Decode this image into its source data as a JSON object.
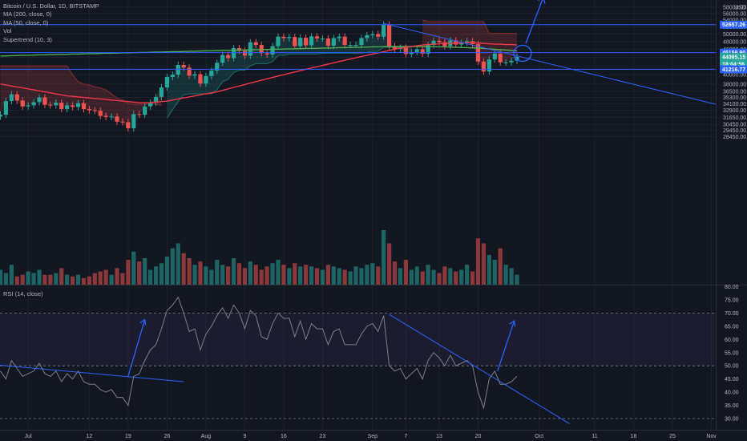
{
  "legend": {
    "title": "Bitcoin / U.S. Dollar, 1D, BITSTAMP",
    "ma200": "MA (200, close, 0)",
    "ma50": "MA (50, close, 0)",
    "vol": "Vol",
    "supertrend": "Supertrend (10, 3)",
    "rsi": "RSI (14, close)"
  },
  "price_axis": {
    "unit": "USD",
    "ticks": [
      "58000.00",
      "56000.00",
      "54000.00",
      "52000.00",
      "50000.00",
      "48000.00",
      "46000.00",
      "44000.00",
      "42000.00",
      "40000.00",
      "38000.00",
      "36500.00",
      "35300.00",
      "34100.00",
      "32900.00",
      "31650.00",
      "30450.00",
      "29450.00",
      "28450.00"
    ],
    "labels": [
      {
        "text": "52657.26",
        "color": "#2962ff"
      },
      {
        "text": "45159.90",
        "color": "#2962ff"
      },
      {
        "text": "44095.15",
        "color": "#26a69a"
      },
      {
        "text": "18:04:56",
        "color": "#26a69a"
      },
      {
        "text": "41216.77",
        "color": "#2962ff"
      }
    ]
  },
  "rsi_axis": {
    "ticks": [
      "80.00",
      "75.00",
      "70.00",
      "65.00",
      "60.00",
      "55.00",
      "50.00",
      "45.00",
      "40.00",
      "35.00",
      "30.00"
    ]
  },
  "time_axis": [
    "Jul",
    "12",
    "19",
    "26",
    "Aug",
    "9",
    "16",
    "23",
    "Sep",
    "7",
    "13",
    "20",
    "Oct",
    "11",
    "18",
    "25",
    "Nov"
  ],
  "colors": {
    "up": "#26a69a",
    "down": "#ef5350",
    "ma200": "#4caf50",
    "ma50": "#f23645",
    "drawing": "#2962ff",
    "rsi": "#7e7f86",
    "background": "#131722"
  },
  "chart_data": [
    {
      "type": "candlestick",
      "title": "Bitcoin / U.S. Dollar, 1D, BITSTAMP",
      "ylabel": "USD",
      "x_range": [
        "2021-06-26",
        "2021-11-02"
      ],
      "ylim": [
        28000,
        58500
      ],
      "log_scale": true,
      "close": [
        32100,
        34600,
        35900,
        34700,
        33600,
        33800,
        34400,
        35300,
        33900,
        33800,
        34300,
        33100,
        33800,
        33500,
        34200,
        33100,
        32900,
        32800,
        31900,
        31700,
        31800,
        30900,
        30800,
        29800,
        32200,
        32100,
        33600,
        34300,
        35400,
        37300,
        39500,
        40000,
        42200,
        41600,
        39800,
        40100,
        38100,
        39700,
        40900,
        42700,
        44600,
        43800,
        46300,
        45600,
        44400,
        47800,
        47100,
        45000,
        44700,
        46800,
        49300,
        48900,
        49200,
        46800,
        49000,
        47000,
        49400,
        48800,
        48800,
        46900,
        48900,
        49300,
        47100,
        47100,
        47100,
        48900,
        49700,
        50000,
        49300,
        52700,
        46800,
        46100,
        46400,
        44800,
        45300,
        46000,
        44900,
        47100,
        48200,
        47800,
        46800,
        48300,
        47200,
        47700,
        48100,
        47300,
        43000,
        40700,
        43500,
        44900,
        42800,
        42800,
        43200,
        44100
      ],
      "ma200": [
        44300,
        44350,
        44400,
        44450,
        44500,
        44500,
        44550,
        44600,
        44600,
        44650,
        44700,
        44700,
        44750,
        44800,
        44800,
        44850,
        44900,
        44900,
        44950,
        45000,
        45000,
        45050,
        45100,
        45100,
        45150,
        45200,
        45200,
        45250,
        45300,
        45300,
        45350,
        45400,
        45400,
        45450,
        45500,
        45500,
        45550,
        45600,
        45600,
        45650,
        45700,
        45700,
        45750,
        45800,
        45800,
        45850,
        45900,
        45900,
        45950,
        46000,
        46000,
        46050,
        46100,
        46100,
        46150,
        46200,
        46200,
        46250,
        46300,
        46300,
        46350,
        46400,
        46400,
        46450,
        46500,
        46500,
        46550,
        46600,
        46600,
        46650,
        46700,
        46700,
        46700,
        46700,
        46700,
        46700,
        46700,
        46650,
        46650,
        46600,
        46600,
        46550,
        46500,
        46450,
        46400,
        46350,
        46300,
        46200,
        46100,
        46000,
        45900,
        45800,
        45700,
        45600
      ],
      "ma50": [
        38000,
        37800,
        37600,
        37400,
        37200,
        37000,
        36800,
        36600,
        36400,
        36200,
        36000,
        35800,
        35600,
        35500,
        35400,
        35300,
        35200,
        35100,
        35000,
        34900,
        34800,
        34700,
        34600,
        34500,
        34400,
        34300,
        34300,
        34300,
        34400,
        34500,
        34600,
        34800,
        35000,
        35200,
        35400,
        35600,
        35800,
        36000,
        36200,
        36400,
        36700,
        37000,
        37300,
        37600,
        37900,
        38200,
        38500,
        38800,
        39100,
        39400,
        39700,
        40000,
        40300,
        40600,
        40900,
        41200,
        41500,
        41800,
        42100,
        42400,
        42700,
        43000,
        43300,
        43600,
        43900,
        44200,
        44500,
        44800,
        45100,
        45400,
        45700,
        46000,
        46300,
        46500,
        46700,
        46900,
        47100,
        47200,
        47300,
        47400,
        47500,
        47500,
        47600,
        47600,
        47700,
        47700,
        47600,
        47500,
        47400,
        47300,
        47300,
        47200,
        47200,
        47100
      ],
      "supertrend_up": [
        null,
        null,
        null,
        null,
        null,
        null,
        null,
        null,
        null,
        null,
        null,
        null,
        null,
        null,
        null,
        null,
        null,
        null,
        null,
        null,
        null,
        null,
        null,
        null,
        null,
        null,
        null,
        null,
        null,
        null,
        31500,
        33000,
        34500,
        35800,
        36000,
        36000,
        36000,
        36000,
        36000,
        36800,
        38500,
        39000,
        40500,
        41000,
        41000,
        42000,
        42500,
        42500,
        42500,
        43000,
        44500,
        44500,
        44800,
        44800,
        44800,
        44800,
        44800,
        44800,
        45000,
        45000,
        45000,
        45000,
        45000,
        45000,
        45000,
        45000,
        45200,
        45500,
        45500,
        46500,
        46500,
        46500,
        46500,
        46500,
        46500,
        null,
        null,
        null,
        null,
        null,
        null,
        null,
        null,
        null,
        null,
        null,
        null,
        null,
        null,
        null,
        null,
        null,
        null,
        null
      ],
      "supertrend_down": [
        null,
        null,
        null,
        null,
        null,
        null,
        null,
        null,
        null,
        null,
        null,
        null,
        null,
        null,
        null,
        null,
        null,
        null,
        null,
        null,
        null,
        null,
        null,
        null,
        null,
        null,
        null,
        null,
        null,
        null,
        null,
        null,
        null,
        null,
        null,
        null,
        null,
        null,
        null,
        null,
        null,
        null,
        null,
        null,
        null,
        null,
        null,
        null,
        null,
        null,
        null,
        null,
        null,
        null,
        null,
        null,
        null,
        null,
        null,
        null,
        null,
        null,
        null,
        null,
        null,
        null,
        null,
        null,
        null,
        null,
        null,
        null,
        null,
        null,
        null,
        null,
        54000,
        53500,
        53500,
        53500,
        53500,
        53500,
        53500,
        53500,
        53500,
        53500,
        53500,
        53500,
        50200,
        50200,
        50200,
        50200,
        50200,
        50200
      ]
    },
    {
      "type": "bar",
      "title": "Vol",
      "series": [
        {
          "name": "Vol",
          "values": [
            9,
            7,
            12,
            5,
            6,
            8,
            7,
            9,
            6,
            6,
            7,
            10,
            6,
            5,
            6,
            4,
            5,
            7,
            8,
            9,
            6,
            10,
            7,
            15,
            20,
            14,
            16,
            9,
            11,
            13,
            17,
            22,
            25,
            19,
            16,
            12,
            14,
            11,
            9,
            15,
            12,
            11,
            16,
            13,
            10,
            14,
            12,
            9,
            11,
            13,
            15,
            12,
            10,
            13,
            11,
            12,
            11,
            10,
            9,
            12,
            11,
            10,
            9,
            8,
            11,
            10,
            12,
            13,
            11,
            33,
            25,
            14,
            10,
            15,
            9,
            11,
            8,
            12,
            9,
            7,
            11,
            10,
            8,
            9,
            12,
            8,
            28,
            25,
            18,
            15,
            22,
            12,
            10,
            6
          ]
        }
      ]
    },
    {
      "type": "line",
      "title": "RSI (14, close)",
      "ylim": [
        28,
        80
      ],
      "series": [
        {
          "name": "RSI (14, close)",
          "values": [
            48,
            45,
            52,
            49,
            46,
            47,
            48,
            51,
            47,
            46,
            48,
            44,
            47,
            45,
            48,
            44,
            43,
            43,
            41,
            40,
            41,
            38,
            38,
            35,
            46,
            47,
            52,
            56,
            58,
            64,
            71,
            73,
            76,
            70,
            63,
            64,
            56,
            62,
            65,
            69,
            72,
            68,
            73,
            70,
            64,
            71,
            69,
            61,
            60,
            66,
            70,
            68,
            68,
            61,
            67,
            60,
            66,
            64,
            64,
            58,
            63,
            64,
            58,
            58,
            58,
            62,
            65,
            66,
            63,
            69,
            50,
            48,
            49,
            45,
            47,
            49,
            45,
            52,
            55,
            53,
            50,
            54,
            50,
            51,
            52,
            50,
            40,
            34,
            45,
            48,
            43,
            43,
            44,
            46
          ]
        }
      ]
    }
  ]
}
